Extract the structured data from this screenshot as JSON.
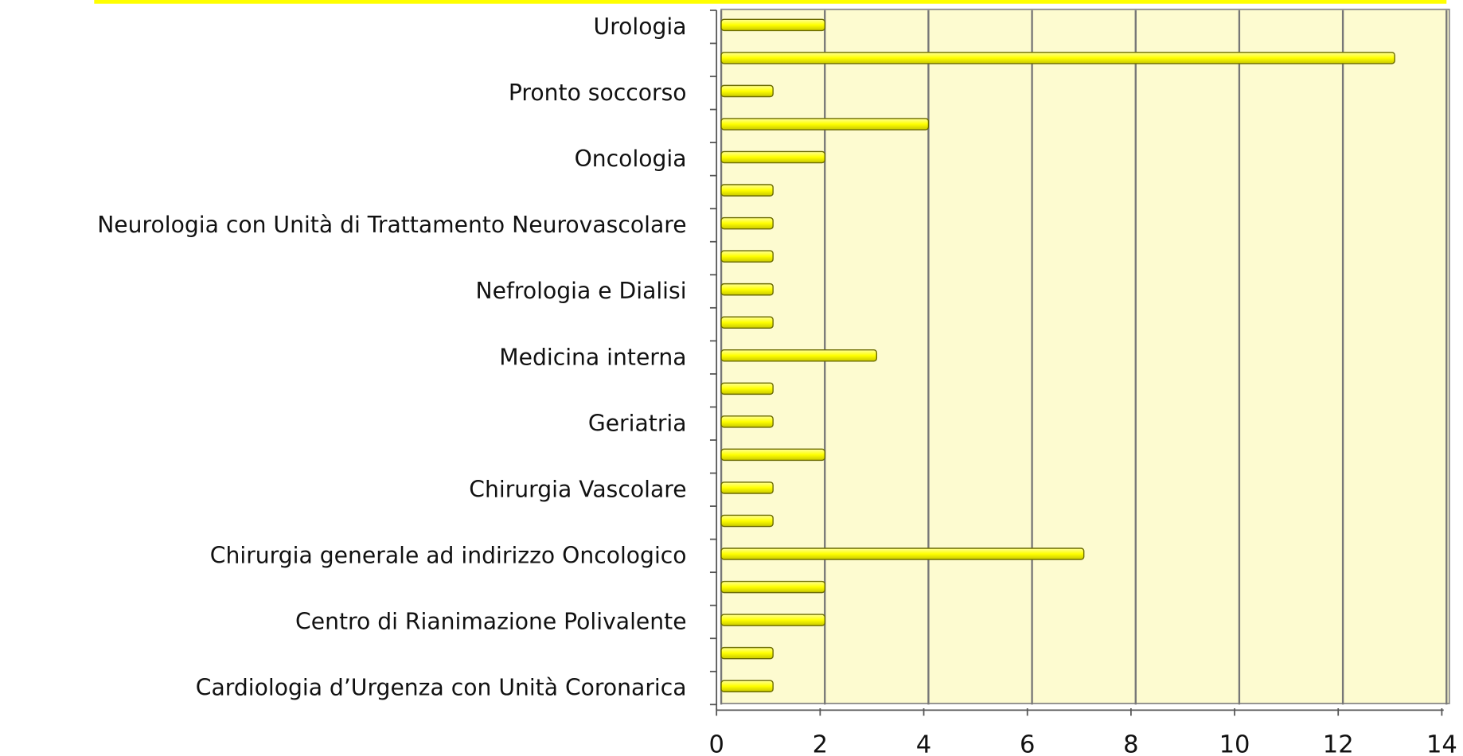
{
  "chart_data": {
    "type": "bar",
    "orientation": "horizontal",
    "categories": [
      "Cardiologia d’Urgenza con Unità Coronarica",
      null,
      "Centro di Rianimazione Polivalente",
      null,
      "Chirurgia generale ad indirizzo Oncologico",
      null,
      "Chirurgia Vascolare",
      null,
      "Geriatria",
      null,
      "Medicina interna",
      null,
      "Nefrologia e Dialisi",
      null,
      "Neurologia con Unità di Trattamento Neurovascolare",
      null,
      "Oncologia",
      null,
      "Pronto soccorso",
      null,
      "Urologia"
    ],
    "values": [
      1,
      1,
      2,
      2,
      7,
      1,
      1,
      2,
      1,
      1,
      3,
      1,
      1,
      1,
      1,
      1,
      2,
      4,
      1,
      13,
      2
    ],
    "color": "#ffff00",
    "xlim": [
      0,
      14
    ],
    "xticks": [
      0,
      2,
      4,
      6,
      8,
      10,
      12,
      14
    ],
    "grid": true
  }
}
